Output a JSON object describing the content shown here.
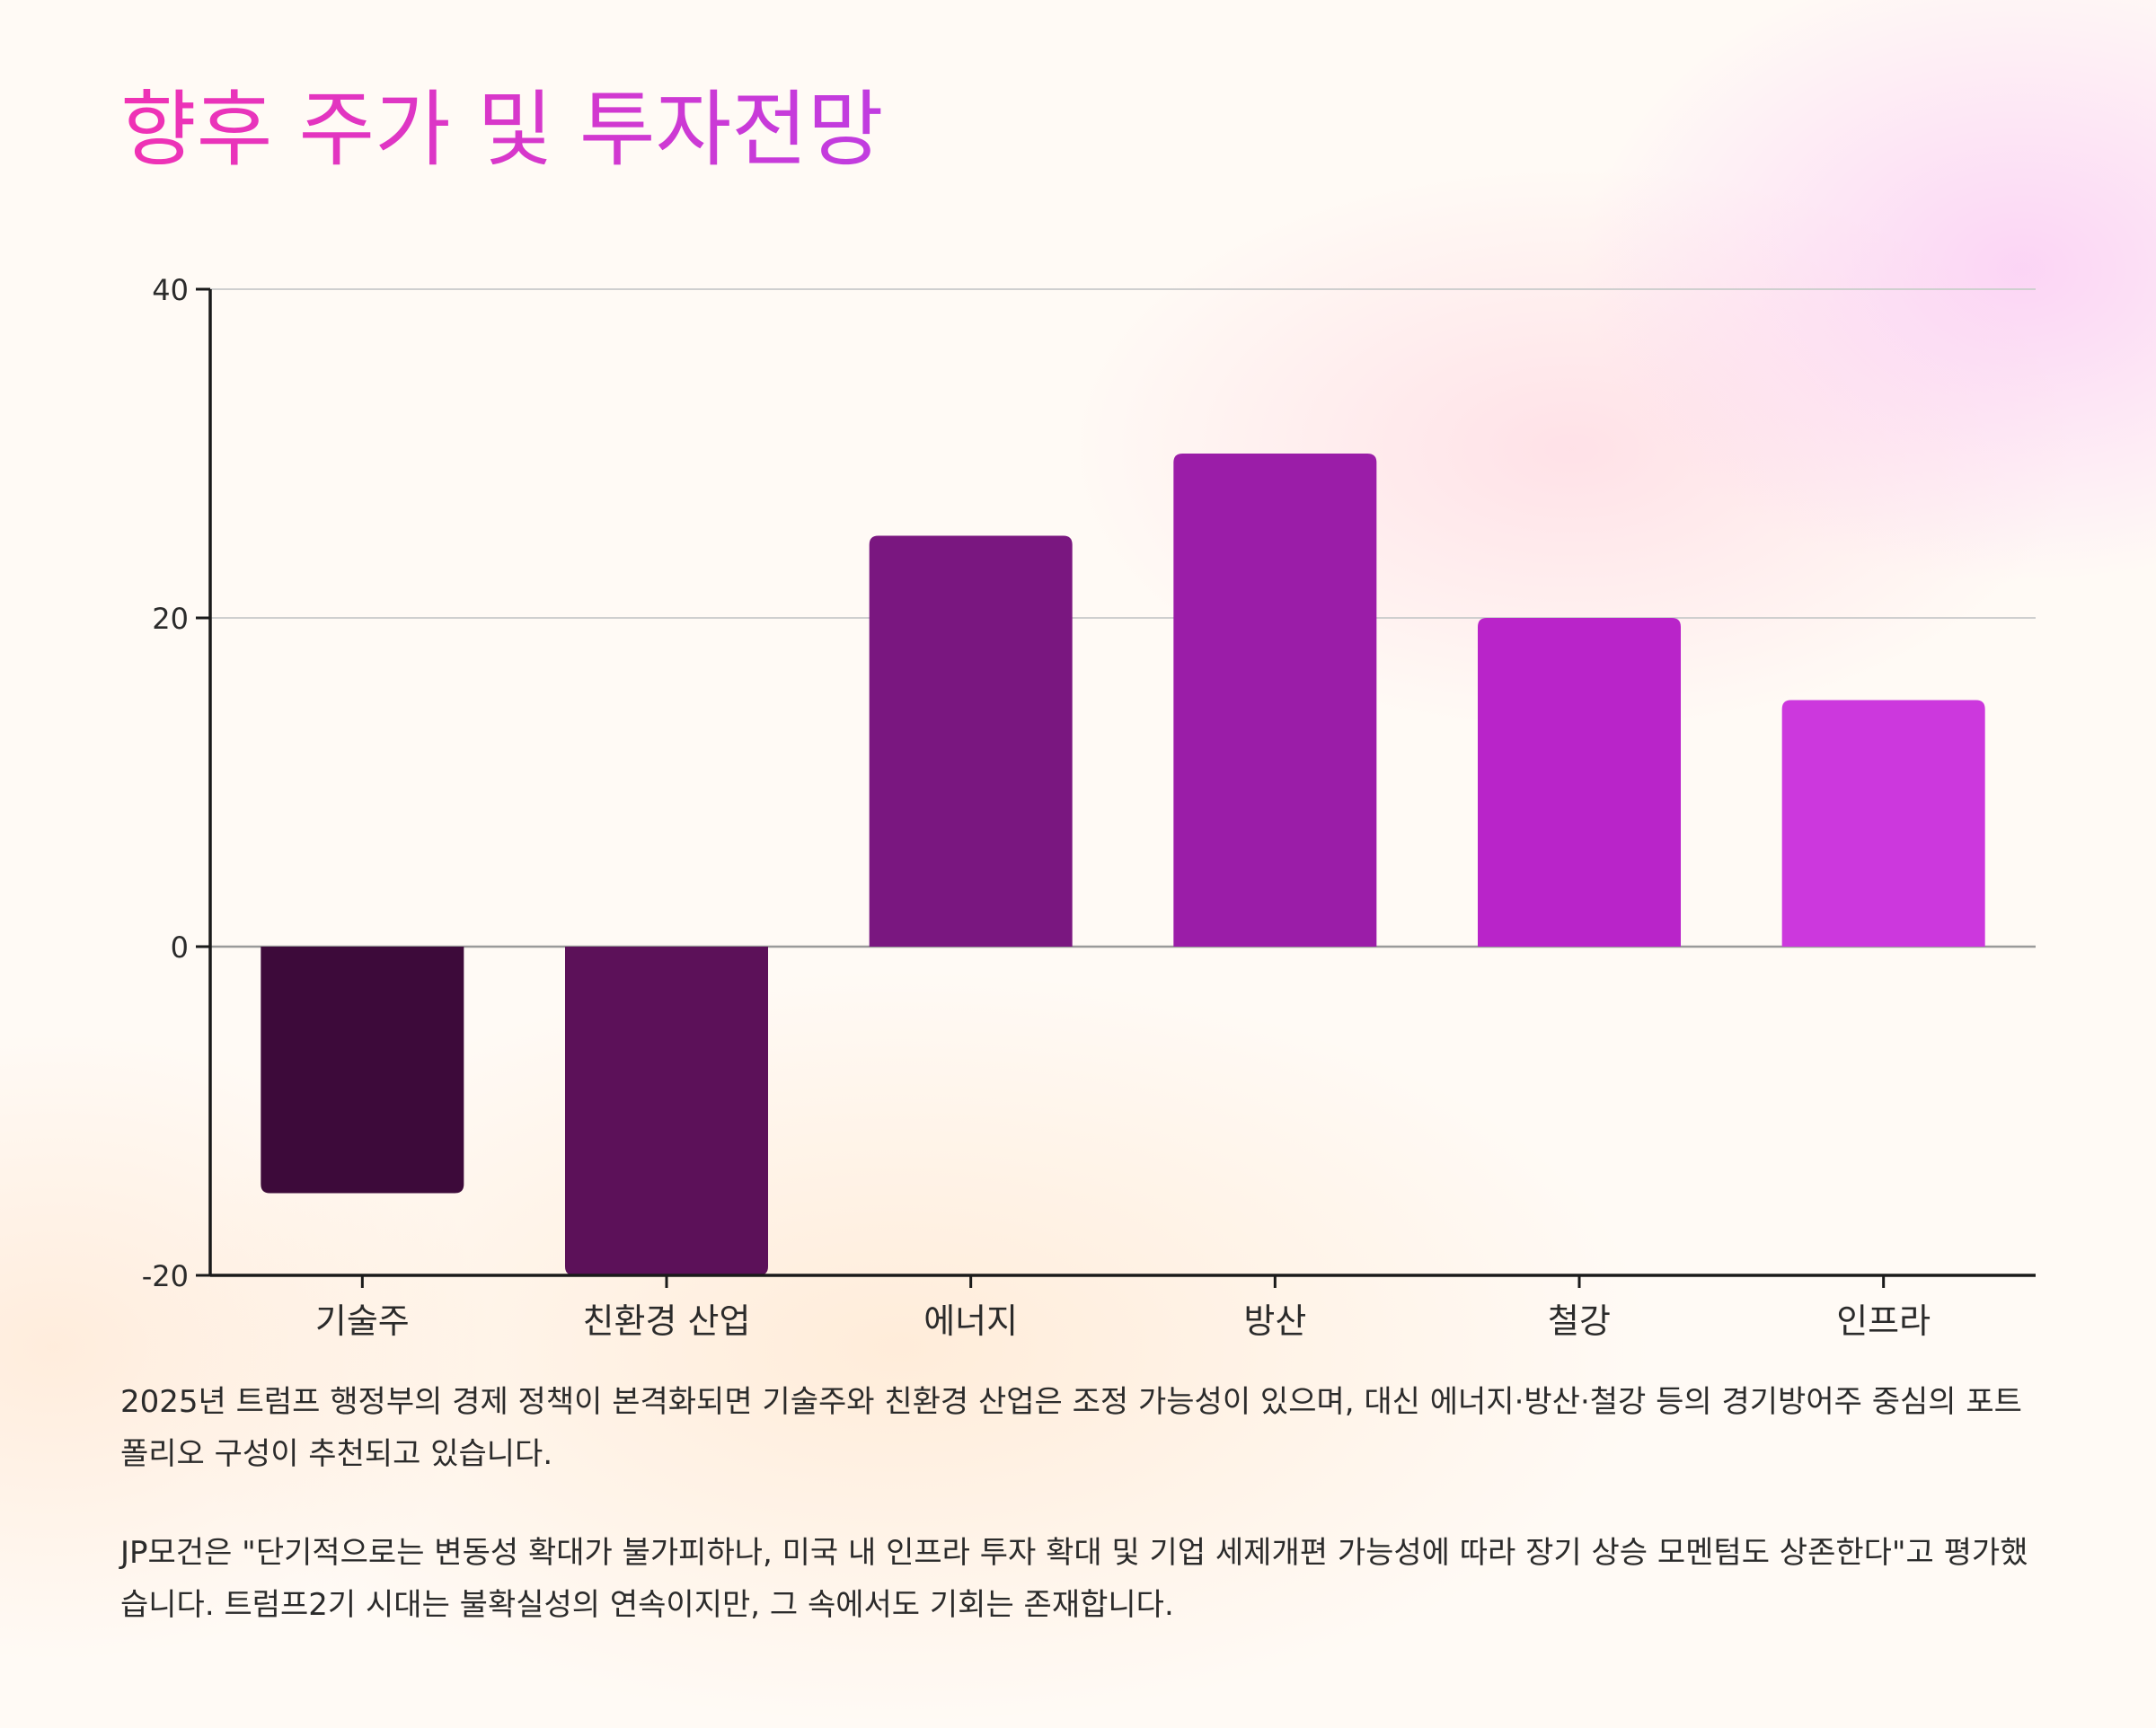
{
  "title": "향후 주가 및 투자전망",
  "chart_data": {
    "type": "bar",
    "categories": [
      "기술주",
      "친환경 산업",
      "에너지",
      "방산",
      "철강",
      "인프라"
    ],
    "values": [
      -15,
      -20,
      25,
      30,
      20,
      15
    ],
    "yticks": [
      40,
      20,
      0,
      -20
    ],
    "ylim": [
      -20,
      40
    ],
    "grid": true,
    "colors": [
      "#3d0a3a",
      "#5c1159",
      "#7a1780",
      "#9b1da8",
      "#b924c9",
      "#cc38dd"
    ]
  },
  "paragraphs": [
    "2025년 트럼프 행정부의 경제 정책이 본격화되면 기술주와 친환경 산업은 조정 가능성이 있으며, 대신 에너지·방산·철강 등의 경기방어주 중심의 포트폴리오 구성이 추천되고 있습니다.",
    "JP모건은 \"단기적으로는 변동성 확대가 불가피하나, 미국 내 인프라 투자 확대 및 기업 세제개편 가능성에 따라 장기 상승 모멘텀도 상존한다\"고 평가했습니다. 트럼프2기 시대는 불확실성의 연속이지만, 그 속에서도 기회는 존재합니다."
  ]
}
